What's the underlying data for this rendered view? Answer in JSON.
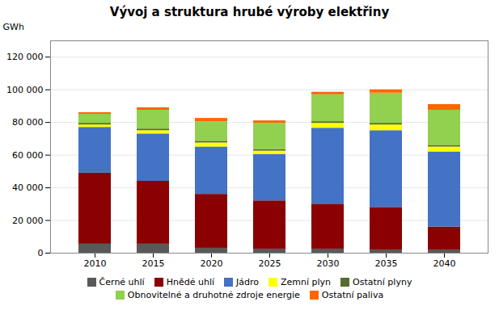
{
  "chart_data": {
    "type": "bar",
    "stacked": true,
    "title": "Vývoj a struktura hrubé výroby elektřiny",
    "ylabel": "GWh",
    "categories": [
      "2010",
      "2015",
      "2020",
      "2025",
      "2030",
      "2035",
      "2040"
    ],
    "series": [
      {
        "name": "Černé uhlí",
        "color": "#595959",
        "values": [
          5500,
          5500,
          3000,
          2500,
          2500,
          2000,
          2000
        ]
      },
      {
        "name": "Hnědé uhlí",
        "color": "#8B0000",
        "values": [
          43500,
          38500,
          33000,
          29500,
          27500,
          26000,
          14000
        ]
      },
      {
        "name": "Jádro",
        "color": "#4472C4",
        "values": [
          28000,
          29000,
          29000,
          28500,
          46500,
          47000,
          46000
        ]
      },
      {
        "name": "Zemní plyn",
        "color": "#FFFF00",
        "values": [
          1500,
          2000,
          2500,
          2000,
          3000,
          3500,
          3000
        ]
      },
      {
        "name": "Ostatní plyny",
        "color": "#556B2F",
        "values": [
          1000,
          1000,
          1000,
          1000,
          1000,
          1000,
          1000
        ]
      },
      {
        "name": "Obnovitelné a druhotné zdroje energie",
        "color": "#92D050",
        "values": [
          5500,
          11500,
          12000,
          16000,
          16500,
          18500,
          21500
        ]
      },
      {
        "name": "Ostatní paliva",
        "color": "#FF6600",
        "values": [
          1000,
          1500,
          2000,
          1500,
          1500,
          2000,
          3500
        ]
      }
    ],
    "ylim": [
      0,
      130000
    ],
    "yticks": [
      0,
      {
        "value": 20000,
        "label": "20 000"
      },
      {
        "value": 40000,
        "label": "40 000"
      },
      {
        "value": 60000,
        "label": "60 000"
      },
      {
        "value": 80000,
        "label": "80 000"
      },
      {
        "value": 100000,
        "label": "100 000"
      },
      {
        "value": 120000,
        "label": "120 000"
      }
    ],
    "grid": true,
    "legend": "bottom"
  }
}
